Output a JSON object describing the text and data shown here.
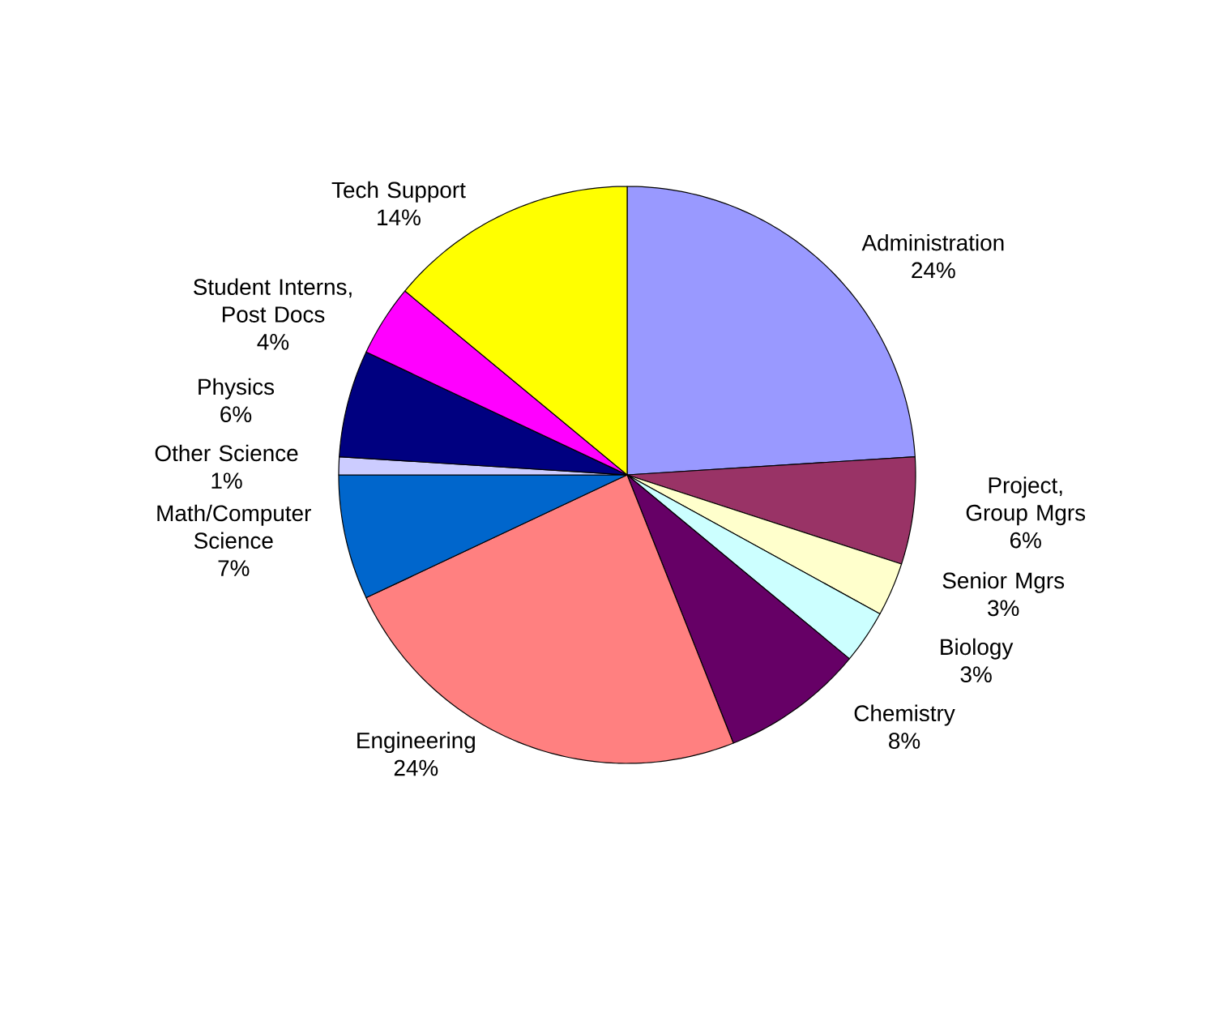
{
  "chart_data": {
    "type": "pie",
    "categories": [
      "Administration",
      "Project, Group Mgrs",
      "Senior Mgrs",
      "Biology",
      "Chemistry",
      "Engineering",
      "Math/Computer Science",
      "Other Science",
      "Physics",
      "Student Interns, Post Docs",
      "Tech Support"
    ],
    "values": [
      24,
      6,
      3,
      3,
      8,
      24,
      7,
      1,
      6,
      4,
      14
    ],
    "colors": [
      "#9999ff",
      "#993366",
      "#ffffcc",
      "#ccffff",
      "#660066",
      "#ff8080",
      "#0066cc",
      "#ccccff",
      "#000080",
      "#ff00ff",
      "#ffff00"
    ],
    "value_labels": [
      "24%",
      "6%",
      "3%",
      "3%",
      "8%",
      "24%",
      "7%",
      "1%",
      "6%",
      "4%",
      "14%"
    ]
  }
}
